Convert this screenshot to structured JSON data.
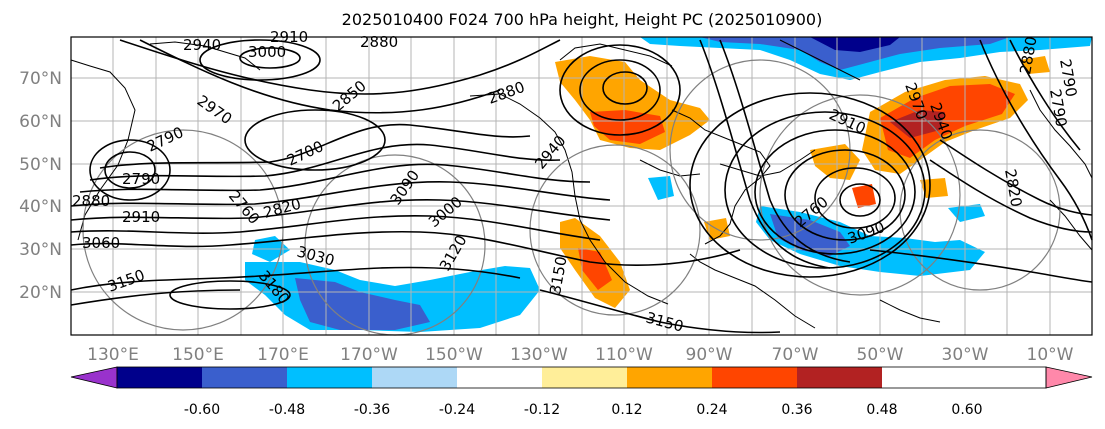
{
  "title": "2025010400 F024 700 hPa height, Height PC (2025010900)",
  "lat_labels": [
    "70°N",
    "60°N",
    "50°N",
    "40°N",
    "30°N",
    "20°N"
  ],
  "lat_values": [
    70,
    60,
    50,
    40,
    30,
    20
  ],
  "lon_labels": [
    "130°E",
    "150°E",
    "170°E",
    "170°W",
    "150°W",
    "130°W",
    "110°W",
    "90°W",
    "70°W",
    "50°W",
    "30°W",
    "10°W"
  ],
  "contour_labels": [
    "2940",
    "3000",
    "2910",
    "2880",
    "2970",
    "2850",
    "2880",
    "2790",
    "2700",
    "2760",
    "2790",
    "2820",
    "2880",
    "2910",
    "3000",
    "3030",
    "3060",
    "3090",
    "3120",
    "3150",
    "3150",
    "3180",
    "3150",
    "2940",
    "2970",
    "2940",
    "2880",
    "2820",
    "2790",
    "2790",
    "2760",
    "3090",
    "2910"
  ],
  "colorbar": {
    "tick_labels": [
      "-0.60",
      "-0.48",
      "-0.36",
      "-0.24",
      "-0.12",
      "0.12",
      "0.24",
      "0.36",
      "0.48",
      "0.60"
    ],
    "colors": [
      "#9932cc",
      "#00008b",
      "#3a5fcd",
      "#00bfff",
      "#add8f6",
      "#ffffff",
      "#ffee99",
      "#ffa500",
      "#ff4500",
      "#b22222",
      "#ff88aa"
    ]
  },
  "colors": {
    "land_outline": "#000000",
    "height_contours": "#000000",
    "pc_circles": "#808080",
    "grid": "#b4b4b4",
    "axis_text": "#808080"
  }
}
